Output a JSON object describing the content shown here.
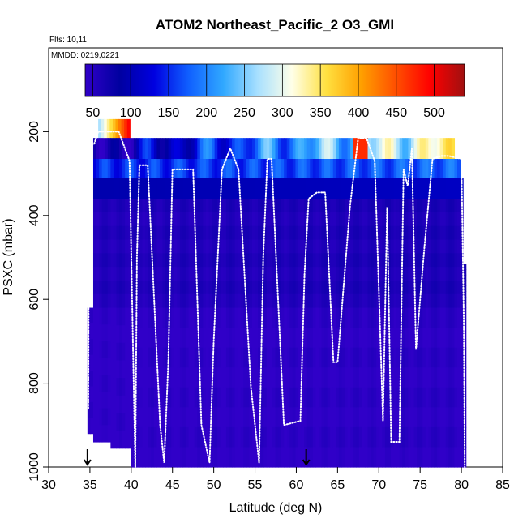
{
  "chart_data": {
    "type": "heatmap",
    "title": "ATOM2 Northeast_Pacific_2 O3_GMI",
    "subtitle_flights": "Flts: 10,11",
    "subtitle_dates": "MMDD: 0219,0221",
    "xlabel": "Latitude (deg N)",
    "ylabel": "PSXC (mbar)",
    "xlim": [
      30,
      85
    ],
    "ylim": [
      1000,
      0
    ],
    "x_ticks": [
      30,
      35,
      40,
      45,
      50,
      55,
      60,
      65,
      70,
      75,
      80,
      85
    ],
    "x_tick_labels": [
      "30",
      "35",
      "40",
      "45",
      "50",
      "55",
      "60",
      "65",
      "70",
      "75",
      "80",
      "85"
    ],
    "y_ticks": [
      200,
      400,
      600,
      800,
      1000
    ],
    "y_tick_labels": [
      "200",
      "400",
      "600",
      "800",
      "1000"
    ],
    "colorbar": {
      "range": [
        40,
        540
      ],
      "ticks": [
        50,
        100,
        150,
        200,
        250,
        300,
        350,
        400,
        450,
        500
      ],
      "tick_labels": [
        "50",
        "100",
        "150",
        "200",
        "250",
        "300",
        "350",
        "400",
        "450",
        "500"
      ],
      "colors": [
        "#3000c8",
        "#0000a0",
        "#0000e0",
        "#1060ff",
        "#30a8ff",
        "#a8e0ff",
        "#ffffe8",
        "#ffe040",
        "#ffa000",
        "#ff5000",
        "#ff0000",
        "#a01010"
      ]
    },
    "column_tops_mbar": [
      {
        "lat_from": 34.7,
        "lat_to": 35.4,
        "top": 620
      },
      {
        "lat_from": 35.4,
        "lat_to": 36.0,
        "top": 215
      },
      {
        "lat_from": 36.0,
        "lat_to": 39.8,
        "top": 170
      },
      {
        "lat_from": 39.8,
        "lat_to": 67.2,
        "top": 215
      },
      {
        "lat_from": 67.2,
        "lat_to": 68.8,
        "top": 200
      },
      {
        "lat_from": 68.8,
        "lat_to": 79.0,
        "top": 215
      },
      {
        "lat_from": 79.0,
        "lat_to": 80.0,
        "top": 265
      },
      {
        "lat_from": 80.0,
        "lat_to": 80.3,
        "top": 310
      },
      {
        "lat_from": 80.3,
        "lat_to": 80.6,
        "top": 515
      }
    ],
    "column_bottoms_mbar": [
      {
        "lat_from": 34.7,
        "lat_to": 35.5,
        "bottom": 920
      },
      {
        "lat_from": 35.5,
        "lat_to": 37.5,
        "bottom": 940
      },
      {
        "lat_from": 37.5,
        "lat_to": 39.8,
        "bottom": 955
      },
      {
        "lat_from": 39.8,
        "lat_to": 80.6,
        "bottom": 1000
      }
    ],
    "layers": [
      {
        "p_top": 170,
        "p_bot": 215,
        "lat_from": 36.0,
        "lat_to": 39.8,
        "o3_start": 270,
        "o3_end": 510
      },
      {
        "p_top": 215,
        "p_bot": 265,
        "lat_from": 35.4,
        "lat_to": 79.0,
        "o3_start": 60,
        "o3_end": 330,
        "hotspot_lat": 67.7,
        "hotspot_o3": 470
      },
      {
        "p_top": 265,
        "p_bot": 310,
        "lat_from": 35.4,
        "lat_to": 80.0,
        "o3_start": 150,
        "o3_end": 180
      },
      {
        "p_top": 310,
        "p_bot": 360,
        "lat_from": 35.4,
        "lat_to": 80.3,
        "o3_start": 95,
        "o3_end": 110
      },
      {
        "p_top": 360,
        "p_bot": 620,
        "lat_from": 35.4,
        "lat_to": 80.6,
        "o3_start": 55,
        "o3_end": 60
      },
      {
        "p_top": 620,
        "p_bot": 1000,
        "lat_from": 34.7,
        "lat_to": 80.6,
        "o3_start": 40,
        "o3_end": 45
      }
    ],
    "flight_track": {
      "lat": [
        34.8,
        34.9,
        35.3,
        35.5,
        36.0,
        37.0,
        38.5,
        39.8,
        40.2,
        40.5,
        40.7,
        41.0,
        42.0,
        43.5,
        44.0,
        44.5,
        45.0,
        46.0,
        47.5,
        48.5,
        49.5,
        50.0,
        51.0,
        52.0,
        53.0,
        54.5,
        55.5,
        56.0,
        56.5,
        57.0,
        58.5,
        60.5,
        61.0,
        61.5,
        62.5,
        63.5,
        64.5,
        65.0,
        66.5,
        67.5,
        68.5,
        69.5,
        70.5,
        71.0,
        71.5,
        72.5,
        73.0,
        73.5,
        74.0,
        74.5,
        75.5,
        76.5,
        77.5,
        78.5,
        80.0,
        80.3,
        80.4
      ],
      "psxc": [
        860,
        240,
        230,
        230,
        200,
        200,
        200,
        270,
        700,
        1000,
        500,
        280,
        280,
        900,
        990,
        750,
        290,
        290,
        290,
        900,
        990,
        700,
        290,
        240,
        290,
        810,
        990,
        500,
        265,
        265,
        900,
        890,
        540,
        360,
        345,
        345,
        750,
        750,
        380,
        215,
        215,
        270,
        890,
        380,
        940,
        940,
        290,
        330,
        240,
        720,
        480,
        265,
        258,
        258,
        265,
        650,
        1000
      ]
    },
    "markers_lat": [
      34.7,
      61.2
    ]
  }
}
